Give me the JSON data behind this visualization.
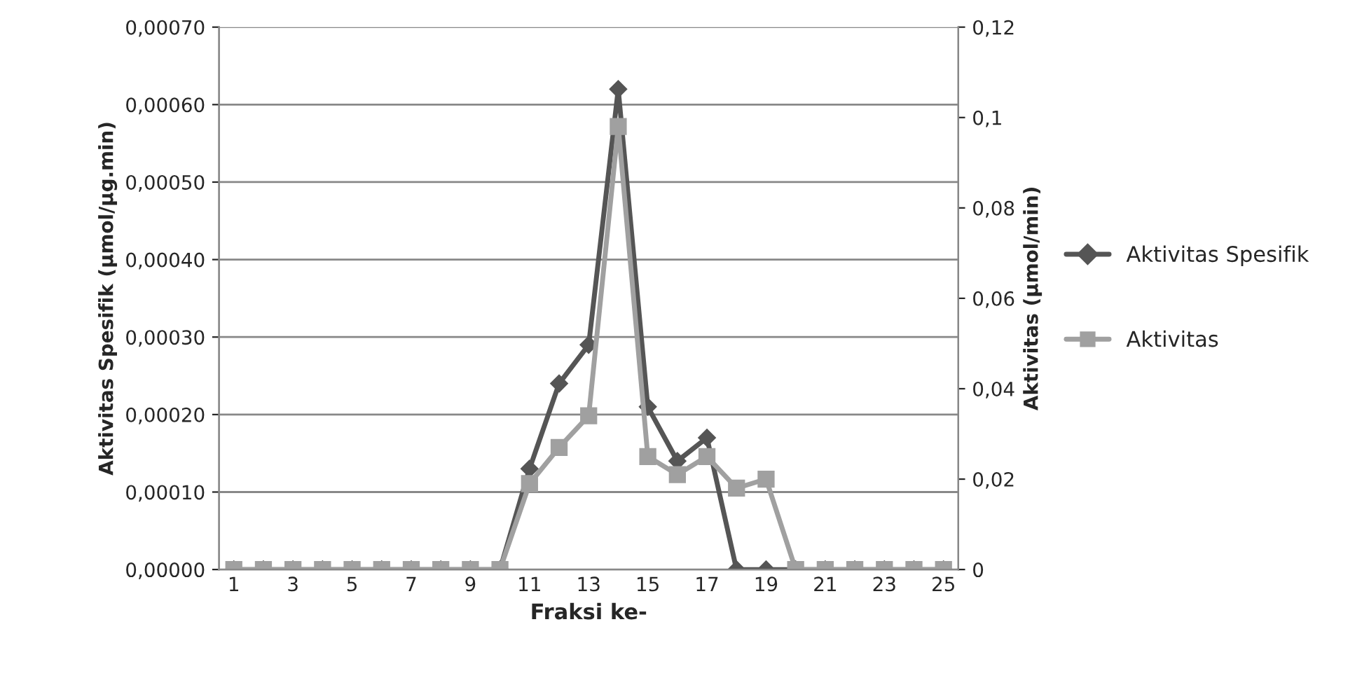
{
  "chart_data": {
    "type": "line",
    "xlabel": "Fraksi ke-",
    "ylabel": "Aktivitas Spesifik (µmol/µg.min)",
    "y2label": "Aktivitas (µmol/min)",
    "categories": [
      "1",
      null,
      "3",
      null,
      "5",
      null,
      "7",
      null,
      "9",
      null,
      "11",
      null,
      "13",
      null,
      "15",
      null,
      "17",
      null,
      "19",
      null,
      "21",
      null,
      "23",
      null,
      "25"
    ],
    "series": [
      {
        "name": "Aktivitas Spesifik",
        "color": "#555555",
        "marker": "diamond",
        "values": [
          0,
          0,
          0,
          0,
          0,
          0,
          0,
          0,
          0,
          0,
          0.00013,
          0.00024,
          0.00029,
          0.00062,
          0.00021,
          0.00014,
          0.00017,
          0,
          0,
          0,
          0,
          0,
          0,
          0,
          0
        ]
      },
      {
        "name": "Aktivitas",
        "color": "#a0a0a0",
        "marker": "square",
        "axis": "y2",
        "values": [
          0,
          0,
          0,
          0,
          0,
          0,
          0,
          0,
          0,
          0,
          0.019,
          0.027,
          0.034,
          0.098,
          0.025,
          0.021,
          0.025,
          0.018,
          0.02,
          0,
          0,
          0,
          0,
          0,
          0
        ]
      }
    ],
    "ylim": [
      0,
      0.0007
    ],
    "yticks": [
      {
        "value": 0,
        "label": "0,00000"
      },
      {
        "value": 0.0001,
        "label": "0,00010"
      },
      {
        "value": 0.0002,
        "label": "0,00020"
      },
      {
        "value": 0.0003,
        "label": "0,00030"
      },
      {
        "value": 0.0004,
        "label": "0,00040"
      },
      {
        "value": 0.0005,
        "label": "0,00050"
      },
      {
        "value": 0.0006,
        "label": "0,00060"
      },
      {
        "value": 0.0007,
        "label": "0,00070"
      }
    ],
    "y2lim": [
      0,
      0.12
    ],
    "y2ticks": [
      0,
      {
        "value": 0.02,
        "label": "0,02"
      },
      {
        "value": 0.04,
        "label": "0,04"
      },
      {
        "value": 0.06,
        "label": "0,06"
      },
      {
        "value": 0.08,
        "label": "0,08"
      },
      {
        "value": 0.1,
        "label": "0,1"
      },
      {
        "value": 0.12,
        "label": "0,12"
      }
    ],
    "grid": "y",
    "legend": "right"
  }
}
